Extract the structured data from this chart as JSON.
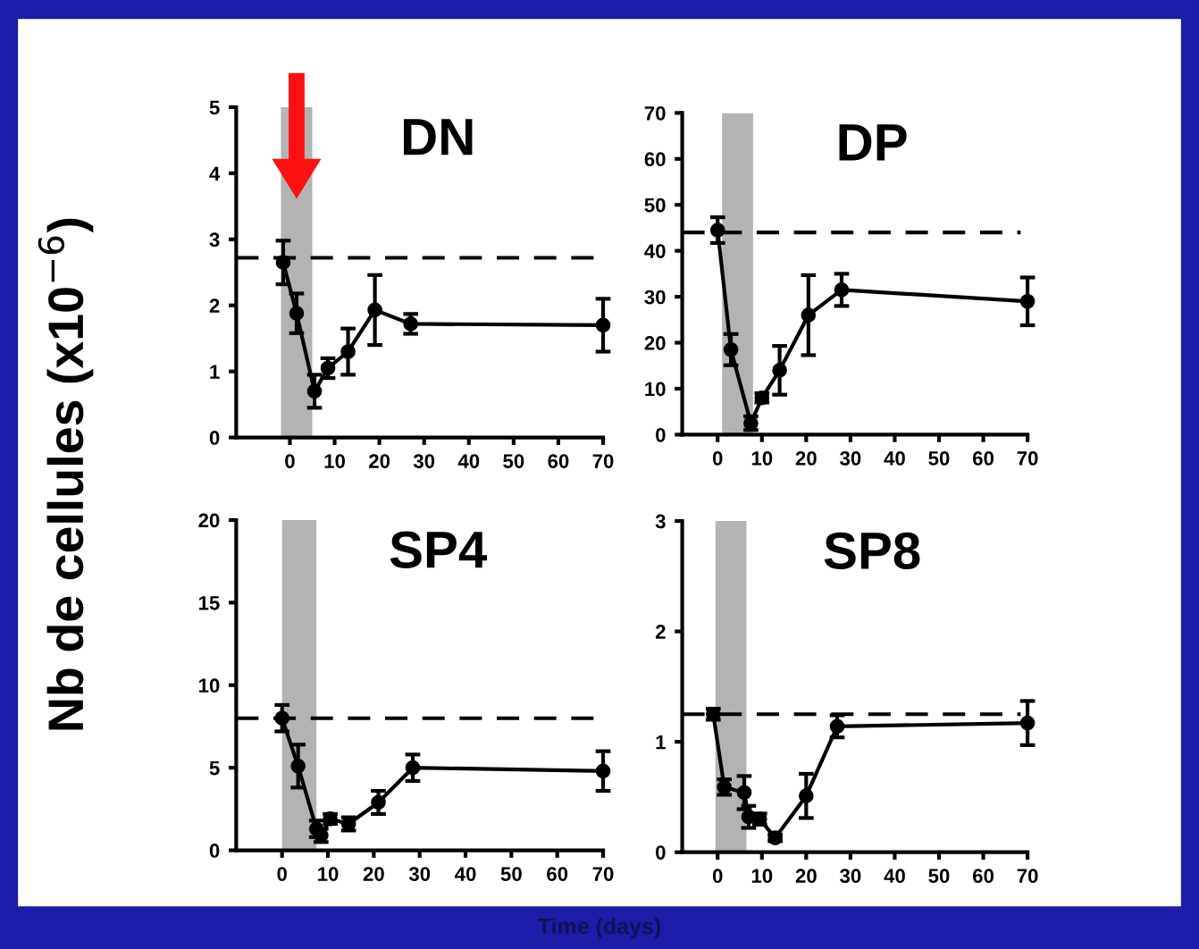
{
  "chart_data": [
    {
      "type": "line",
      "title": "DN",
      "ylabel": "Nb de cellules (x10$^{−6}$)",
      "x": [
        -1.5,
        1.5,
        5.5,
        8.5,
        13,
        19,
        27,
        70
      ],
      "xlim": [
        -12,
        70
      ],
      "xticks": [
        0,
        10,
        20,
        30,
        40,
        50,
        60,
        70
      ],
      "ylim": [
        0,
        5
      ],
      "yticks": [
        0,
        1,
        2,
        3,
        4,
        5
      ],
      "marker": "circle",
      "line_style": "solid",
      "series": [
        {
          "color": "#000000",
          "values": [
            2.65,
            1.88,
            0.7,
            1.05,
            1.3,
            1.93,
            1.72,
            1.7
          ],
          "errors": [
            0.33,
            0.3,
            0.25,
            0.15,
            0.35,
            0.53,
            0.15,
            0.4
          ]
        }
      ],
      "ref_lines": [
        {
          "axis": "y",
          "value": 2.72,
          "line_style": "dashed",
          "color": "#000000"
        }
      ],
      "bands": [
        {
          "axis": "x",
          "from": -2,
          "to": 5,
          "color": "#b3b3b3"
        }
      ]
    },
    {
      "type": "line",
      "title": "DP",
      "x": [
        0,
        3,
        7.5,
        10,
        14,
        20.5,
        28,
        70
      ],
      "xlim": [
        -8,
        70
      ],
      "xticks": [
        0,
        10,
        20,
        30,
        40,
        50,
        60,
        70
      ],
      "ylim": [
        0,
        70
      ],
      "yticks": [
        0,
        10,
        20,
        30,
        40,
        50,
        60,
        70
      ],
      "marker": "circle",
      "line_style": "solid",
      "series": [
        {
          "color": "#000000",
          "values": [
            44.5,
            18.5,
            2.5,
            8,
            14,
            26,
            31.5,
            29
          ],
          "errors": [
            2.8,
            3.4,
            1.5,
            1,
            5.3,
            8.7,
            3.5,
            5.2
          ]
        }
      ],
      "ref_lines": [
        {
          "axis": "y",
          "value": 44,
          "line_style": "dashed",
          "color": "#000000"
        }
      ],
      "bands": [
        {
          "axis": "x",
          "from": 1,
          "to": 8,
          "color": "#b3b3b3"
        }
      ]
    },
    {
      "type": "line",
      "title": "SP4",
      "xlabel": "Time (days)",
      "x": [
        0,
        3.5,
        7.5,
        8.5,
        10.5,
        14.5,
        21,
        28.5,
        70
      ],
      "xlim": [
        -10,
        70
      ],
      "xticks": [
        0,
        10,
        20,
        30,
        40,
        50,
        60,
        70
      ],
      "ylim": [
        0,
        20
      ],
      "yticks": [
        0,
        5,
        10,
        15,
        20
      ],
      "marker": "circle",
      "line_style": "solid",
      "series": [
        {
          "color": "#000000",
          "values": [
            8,
            5.1,
            1.3,
            0.9,
            1.9,
            1.6,
            2.9,
            5,
            4.8
          ],
          "errors": [
            0.8,
            1.3,
            0.5,
            0.4,
            0.3,
            0.4,
            0.7,
            0.8,
            1.2
          ]
        }
      ],
      "ref_lines": [
        {
          "axis": "y",
          "value": 8,
          "line_style": "dashed",
          "color": "#000000"
        }
      ],
      "bands": [
        {
          "axis": "x",
          "from": 0,
          "to": 7.5,
          "color": "#b3b3b3"
        }
      ]
    },
    {
      "type": "line",
      "title": "SP8",
      "x": [
        -1,
        1.5,
        6,
        7,
        9.5,
        13,
        20,
        27,
        70
      ],
      "xlim": [
        -8,
        70
      ],
      "xticks": [
        0,
        10,
        20,
        30,
        40,
        50,
        60,
        70
      ],
      "ylim": [
        0,
        3
      ],
      "yticks": [
        0,
        1,
        2,
        3
      ],
      "marker": "circle",
      "line_style": "solid",
      "series": [
        {
          "color": "#000000",
          "values": [
            1.25,
            0.59,
            0.54,
            0.32,
            0.3,
            0.13,
            0.51,
            1.14,
            1.17
          ],
          "errors": [
            0.05,
            0.07,
            0.15,
            0.1,
            0.05,
            0.03,
            0.2,
            0.1,
            0.2
          ]
        }
      ],
      "ref_lines": [
        {
          "axis": "y",
          "value": 1.25,
          "line_style": "dashed",
          "color": "#000000"
        }
      ],
      "bands": [
        {
          "axis": "x",
          "from": -0.5,
          "to": 6.5,
          "color": "#b3b3b3"
        }
      ]
    }
  ]
}
